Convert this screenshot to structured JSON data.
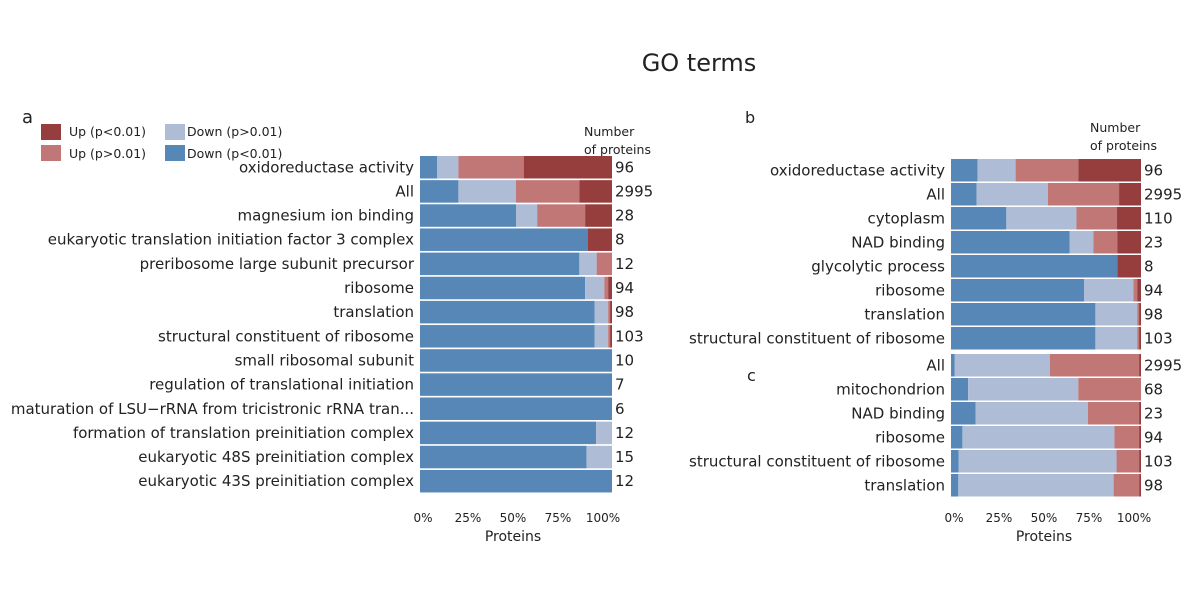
{
  "title": "GO terms",
  "colors": {
    "up_sig": "#963d3d",
    "up_ns": "#c27777",
    "down_ns": "#aebcd6",
    "down_sig": "#5687b7"
  },
  "legend": {
    "items": [
      {
        "key": "up_sig",
        "label": "Up (p<0.01)"
      },
      {
        "key": "down_ns",
        "label": "Down (p>0.01)"
      },
      {
        "key": "up_ns",
        "label": "Up (p>0.01)"
      },
      {
        "key": "down_sig",
        "label": "Down (p<0.01)"
      }
    ]
  },
  "number_header": {
    "line1": "Number",
    "line2": "of proteins"
  },
  "x_axis": {
    "label": "Proteins",
    "ticks": [
      "0%",
      "25%",
      "50%",
      "75%",
      "100%"
    ]
  },
  "chart_data": [
    {
      "panel": "a",
      "type": "bar",
      "orientation": "horizontal",
      "stacked": true,
      "xlabel": "Proteins",
      "xlim": [
        0,
        100
      ],
      "series_order": [
        "down_sig",
        "down_ns",
        "up_ns",
        "up_sig"
      ],
      "series_names": {
        "down_sig": "Down (p<0.01)",
        "down_ns": "Down (p>0.01)",
        "up_ns": "Up (p>0.01)",
        "up_sig": "Up (p<0.01)"
      },
      "groups": [
        {
          "rows": [
            {
              "label": "oxidoreductase activity",
              "n": "96",
              "values": [
                9,
                11,
                34,
                46
              ]
            },
            {
              "label": "All",
              "n": "2995",
              "values": [
                20,
                30,
                33,
                17
              ]
            },
            {
              "label": "magnesium ion binding",
              "n": "28",
              "values": [
                50,
                11,
                25,
                14
              ]
            },
            {
              "label": "eukaryotic translation initiation factor 3 complex",
              "n": "8",
              "values": [
                87.5,
                0,
                0,
                12.5
              ]
            },
            {
              "label": "preribosome large subunit precursor",
              "n": "12",
              "values": [
                83,
                9,
                8,
                0
              ]
            },
            {
              "label": "ribosome",
              "n": "94",
              "values": [
                86,
                10,
                2,
                2
              ]
            },
            {
              "label": "translation",
              "n": "98",
              "values": [
                91,
                7,
                1,
                1
              ]
            },
            {
              "label": "structural constituent of ribosome",
              "n": "103",
              "values": [
                91,
                7,
                1,
                1
              ]
            },
            {
              "label": "small ribosomal subunit",
              "n": "10",
              "values": [
                100,
                0,
                0,
                0
              ]
            },
            {
              "label": "regulation of translational initiation",
              "n": "7",
              "values": [
                100,
                0,
                0,
                0
              ]
            },
            {
              "label": "maturation of LSU−rRNA from tricistronic rRNA tran...",
              "n": "6",
              "values": [
                100,
                0,
                0,
                0
              ]
            },
            {
              "label": "formation of translation preinitiation complex",
              "n": "12",
              "values": [
                91.7,
                8.3,
                0,
                0
              ]
            },
            {
              "label": "eukaryotic 48S preinitiation complex",
              "n": "15",
              "values": [
                86.7,
                13.3,
                0,
                0
              ]
            },
            {
              "label": "eukaryotic 43S preinitiation complex",
              "n": "12",
              "values": [
                100,
                0,
                0,
                0
              ]
            }
          ]
        }
      ]
    },
    {
      "panel": "b",
      "type": "bar",
      "orientation": "horizontal",
      "stacked": true,
      "xlabel": "",
      "xlim": [
        0,
        100
      ],
      "series_order": [
        "down_sig",
        "down_ns",
        "up_ns",
        "up_sig"
      ],
      "groups": [
        {
          "rows": [
            {
              "label": "oxidoreductase activity",
              "n": "96",
              "values": [
                14,
                20,
                33,
                33
              ]
            },
            {
              "label": "All",
              "n": "2995",
              "values": [
                14,
                39,
                39,
                12
              ]
            },
            {
              "label": "cytoplasm",
              "n": "110",
              "values": [
                30,
                38,
                22,
                13
              ]
            },
            {
              "label": "NAD binding",
              "n": "23",
              "values": [
                65,
                13,
                13,
                13
              ]
            },
            {
              "label": "glycolytic process",
              "n": "8",
              "values": [
                87.5,
                0,
                0,
                12.5
              ]
            },
            {
              "label": "ribosome",
              "n": "94",
              "values": [
                70,
                26,
                2,
                2
              ]
            },
            {
              "label": "translation",
              "n": "98",
              "values": [
                76,
                22,
                1,
                1
              ]
            },
            {
              "label": "structural constituent of ribosome",
              "n": "103",
              "values": [
                76,
                22,
                1,
                1
              ]
            }
          ]
        }
      ]
    },
    {
      "panel": "c",
      "type": "bar",
      "orientation": "horizontal",
      "stacked": true,
      "xlabel": "Proteins",
      "xlim": [
        0,
        100
      ],
      "series_order": [
        "down_sig",
        "down_ns",
        "up_ns",
        "up_sig"
      ],
      "groups": [
        {
          "rows": [
            {
              "label": "All",
              "n": "2995",
              "values": [
                2,
                50,
                47,
                1
              ]
            },
            {
              "label": "mitochondrion",
              "n": "68",
              "values": [
                9,
                58,
                33,
                0
              ]
            },
            {
              "label": "NAD binding",
              "n": "23",
              "values": [
                13,
                59,
                27,
                1
              ]
            },
            {
              "label": "ribosome",
              "n": "94",
              "values": [
                6,
                80,
                13,
                1
              ]
            },
            {
              "label": "structural constituent of ribosome",
              "n": "103",
              "values": [
                4,
                84,
                12,
                1
              ]
            },
            {
              "label": "translation",
              "n": "98",
              "values": [
                4,
                85,
                14,
                1
              ]
            }
          ]
        }
      ]
    }
  ]
}
